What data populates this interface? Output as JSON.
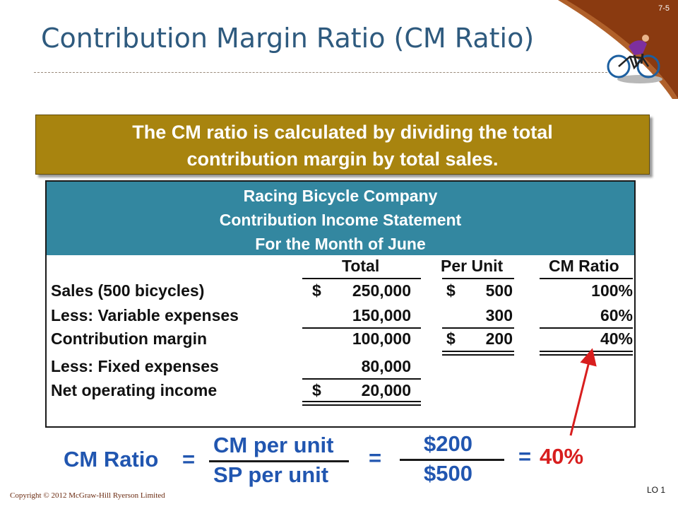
{
  "slide_number": "7-5",
  "title": "Contribution Margin Ratio (CM Ratio)",
  "banner": {
    "line1": "The CM ratio is calculated by dividing the total",
    "line2": "contribution margin by total sales."
  },
  "statement": {
    "company": "Racing Bicycle Company",
    "name": "Contribution Income Statement",
    "period": "For the Month of June",
    "headers": {
      "total": "Total",
      "per_unit": "Per Unit",
      "cm_ratio": "CM Ratio"
    },
    "rows": [
      {
        "label": "Sales (500 bicycles)",
        "total_sign": "$",
        "total": "250,000",
        "unit_sign": "$",
        "per_unit": "500",
        "ratio": "100%"
      },
      {
        "label": "Less: Variable expenses",
        "total_sign": "",
        "total": "150,000",
        "unit_sign": "",
        "per_unit": "300",
        "ratio": "60%"
      },
      {
        "label": "Contribution margin",
        "total_sign": "",
        "total": "100,000",
        "unit_sign": "$",
        "per_unit": "200",
        "ratio": "40%"
      },
      {
        "label": "Less: Fixed expenses",
        "total_sign": "",
        "total": "80,000",
        "unit_sign": "",
        "per_unit": "",
        "ratio": ""
      },
      {
        "label": "Net operating income",
        "total_sign": "$",
        "total": "20,000",
        "unit_sign": "",
        "per_unit": "",
        "ratio": ""
      }
    ]
  },
  "formula": {
    "label": "CM Ratio",
    "eq1": "=",
    "numerator": "CM per unit",
    "denominator": "SP per unit",
    "eq2": "=",
    "num_value": "$200",
    "den_value": "$500",
    "eq3": "=",
    "result": "40%"
  },
  "copyright": "Copyright © 2012 McGraw-Hill Ryerson Limited",
  "lo": "LO 1",
  "colors": {
    "title": "#2e5a7e",
    "banner": "#a8840f",
    "header": "#3387a0",
    "formula": "#2156b0",
    "result": "#d81e1e",
    "corner": "#8a3a10"
  }
}
